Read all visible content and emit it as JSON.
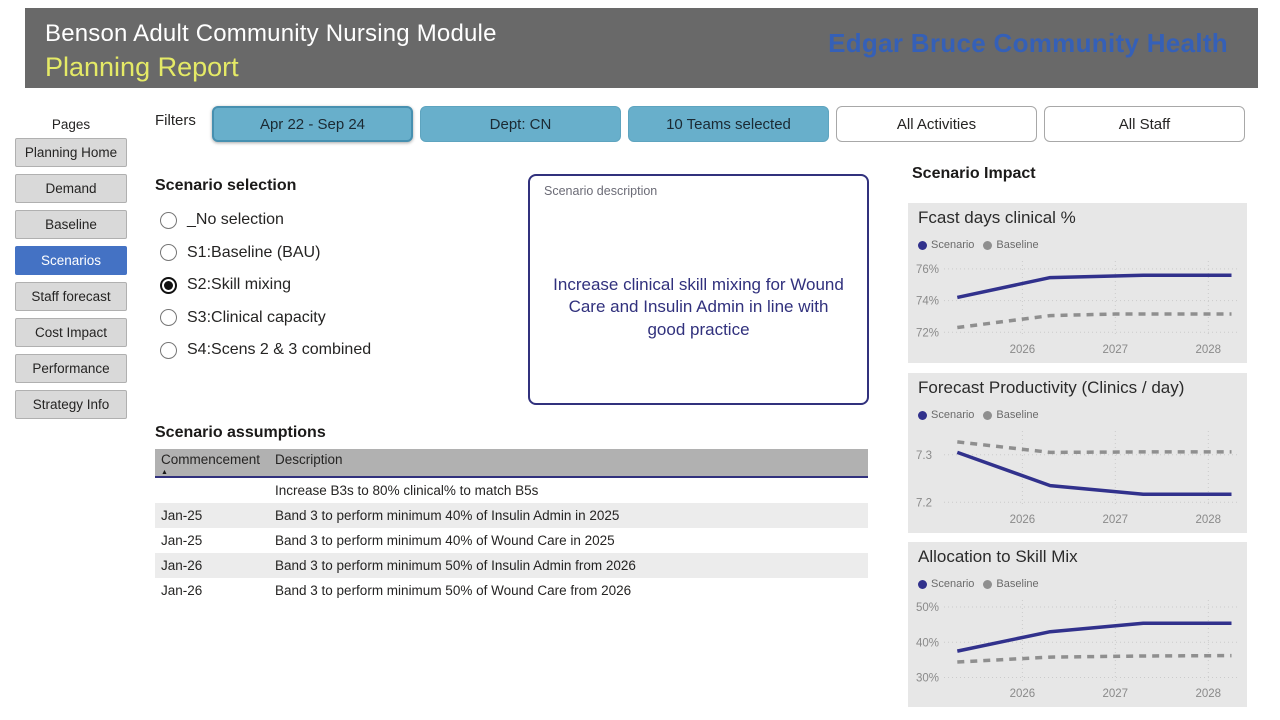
{
  "header": {
    "title": "Benson Adult Community Nursing Module",
    "subtitle": "Planning Report",
    "org": "Edgar Bruce Community Health"
  },
  "sidebar": {
    "heading": "Pages",
    "items": [
      {
        "label": "Planning Home",
        "selected": false
      },
      {
        "label": "Demand",
        "selected": false
      },
      {
        "label": "Baseline",
        "selected": false
      },
      {
        "label": "Scenarios",
        "selected": true
      },
      {
        "label": "Staff forecast",
        "selected": false
      },
      {
        "label": "Cost Impact",
        "selected": false
      },
      {
        "label": "Performance",
        "selected": false
      },
      {
        "label": "Strategy Info",
        "selected": false
      }
    ]
  },
  "filters": {
    "label": "Filters",
    "buttons": [
      {
        "label": "Apr 22 - Sep 24",
        "variant": "teal-primary"
      },
      {
        "label": "Dept: CN",
        "variant": "teal"
      },
      {
        "label": "10 Teams selected",
        "variant": "teal"
      },
      {
        "label": "All Activities",
        "variant": "white"
      },
      {
        "label": "All Staff",
        "variant": "white"
      }
    ]
  },
  "scenario_selection": {
    "heading": "Scenario selection",
    "options": [
      {
        "label": "_No selection",
        "selected": false
      },
      {
        "label": "S1:Baseline (BAU)",
        "selected": false
      },
      {
        "label": "S2:Skill mixing",
        "selected": true
      },
      {
        "label": "S3:Clinical capacity",
        "selected": false
      },
      {
        "label": "S4:Scens 2 & 3 combined",
        "selected": false
      }
    ]
  },
  "scenario_description": {
    "label": "Scenario description",
    "text": "Increase clinical skill mixing for Wound Care and Insulin Admin in line with good practice"
  },
  "assumptions": {
    "heading": "Scenario assumptions",
    "columns": [
      "Commencement",
      "Description"
    ],
    "sort_icon": "▲",
    "rows": [
      {
        "commencement": "",
        "description": "Increase B3s to 80% clinical% to match B5s"
      },
      {
        "commencement": "Jan-25",
        "description": "Band 3 to perform minimum 40% of Insulin Admin in 2025"
      },
      {
        "commencement": "Jan-25",
        "description": "Band 3 to perform minimum 40% of Wound Care in 2025"
      },
      {
        "commencement": "Jan-26",
        "description": "Band 3 to perform minimum 50% of Insulin Admin from 2026"
      },
      {
        "commencement": "Jan-26",
        "description": "Band 3 to perform minimum 50% of Wound Care from 2026"
      }
    ]
  },
  "impact": {
    "heading": "Scenario Impact"
  },
  "colors": {
    "scenario_line": "#31318c",
    "baseline_line": "#8f8f8f",
    "selected_page_blue": "#4472c4",
    "filter_teal": "#68afcb",
    "header_gray": "#696969",
    "subtitle_yellow": "#e5ea66",
    "org_blue": "#3560b7",
    "card_gray": "#e7e7e7"
  },
  "chart_data": [
    {
      "type": "line",
      "title": "Fcast days clinical %",
      "xlabel": "",
      "ylabel": "",
      "xlim": [
        2025.2,
        2028.32
      ],
      "ylim": [
        71.7,
        76.5
      ],
      "xticks": [
        {
          "v": 2026,
          "label": "2026"
        },
        {
          "v": 2027,
          "label": "2027"
        },
        {
          "v": 2028,
          "label": "2028"
        }
      ],
      "yticks": [
        {
          "v": 76,
          "label": "76%"
        },
        {
          "v": 74,
          "label": "74%"
        },
        {
          "v": 72,
          "label": "72%"
        }
      ],
      "series": [
        {
          "name": "Scenario",
          "dashed": false,
          "points": [
            [
              2025.3,
              74.2
            ],
            [
              2026.3,
              75.45
            ],
            [
              2027.3,
              75.6
            ],
            [
              2028.25,
              75.6
            ]
          ]
        },
        {
          "name": "Baseline",
          "dashed": true,
          "points": [
            [
              2025.3,
              72.3
            ],
            [
              2026.3,
              73.05
            ],
            [
              2027.0,
              73.15
            ],
            [
              2028.25,
              73.15
            ]
          ]
        }
      ]
    },
    {
      "type": "line",
      "title": "Forecast Productivity (Clinics / day)",
      "xlabel": "",
      "ylabel": "",
      "xlim": [
        2025.2,
        2028.32
      ],
      "ylim": [
        7.19,
        7.35
      ],
      "xticks": [
        {
          "v": 2026,
          "label": "2026"
        },
        {
          "v": 2027,
          "label": "2027"
        },
        {
          "v": 2028,
          "label": "2028"
        }
      ],
      "yticks": [
        {
          "v": 7.3,
          "label": "7.3"
        },
        {
          "v": 7.2,
          "label": "7.2"
        }
      ],
      "series": [
        {
          "name": "Scenario",
          "dashed": false,
          "points": [
            [
              2025.3,
              7.305
            ],
            [
              2026.3,
              7.235
            ],
            [
              2027.3,
              7.217
            ],
            [
              2028.25,
              7.217
            ]
          ]
        },
        {
          "name": "Baseline",
          "dashed": true,
          "points": [
            [
              2025.3,
              7.327
            ],
            [
              2026.3,
              7.305
            ],
            [
              2027.3,
              7.306
            ],
            [
              2028.25,
              7.306
            ]
          ]
        }
      ]
    },
    {
      "type": "line",
      "title": "Allocation to Skill Mix",
      "xlabel": "",
      "ylabel": "",
      "xlim": [
        2025.2,
        2028.32
      ],
      "ylim": [
        29,
        52
      ],
      "xticks": [
        {
          "v": 2026,
          "label": "2026"
        },
        {
          "v": 2027,
          "label": "2027"
        },
        {
          "v": 2028,
          "label": "2028"
        }
      ],
      "yticks": [
        {
          "v": 50,
          "label": "50%"
        },
        {
          "v": 40,
          "label": "40%"
        },
        {
          "v": 30,
          "label": "30%"
        }
      ],
      "series": [
        {
          "name": "Scenario",
          "dashed": false,
          "points": [
            [
              2025.3,
              37.5
            ],
            [
              2026.3,
              43.0
            ],
            [
              2027.3,
              45.4
            ],
            [
              2028.25,
              45.4
            ]
          ]
        },
        {
          "name": "Baseline",
          "dashed": true,
          "points": [
            [
              2025.3,
              34.4
            ],
            [
              2026.3,
              35.8
            ],
            [
              2027.3,
              36.1
            ],
            [
              2028.25,
              36.2
            ]
          ]
        }
      ]
    }
  ]
}
